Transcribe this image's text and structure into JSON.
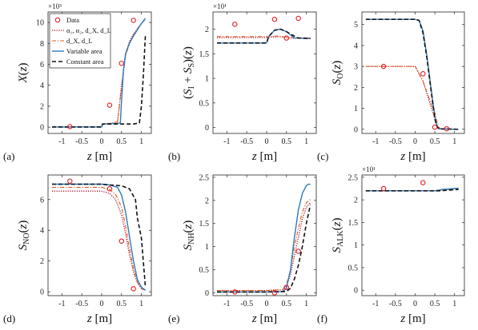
{
  "series_styles": [
    {
      "key": "alpha",
      "color": "#b0102a",
      "dash": "1.2,1.6",
      "width": 1.3
    },
    {
      "key": "dxdl",
      "color": "#e05a1a",
      "dash": "5,2,1.2,2",
      "width": 1.1
    },
    {
      "key": "variable",
      "color": "#2b7bc0",
      "dash": "",
      "width": 1.4
    },
    {
      "key": "constant",
      "color": "#111111",
      "dash": "5,3",
      "width": 1.6
    }
  ],
  "data_color": "#e0202a",
  "legend": {
    "data": "Data",
    "alpha": "α₁, α₂, d_X, d_L",
    "dxdl": "d_X, d_L",
    "variable": "Variable area",
    "constant": "Constant area"
  },
  "chart_data": [
    {
      "type": "line",
      "panel_label": "(a)",
      "ylabel": "X(z)",
      "xlabel": "z [m]",
      "exponent": "×10³",
      "xlim": [
        -1.35,
        1.25
      ],
      "ylim": [
        -0.6,
        11
      ],
      "xticks": [
        -1,
        -0.5,
        0,
        0.5,
        1
      ],
      "xtick_labels": [
        "-1",
        "-0.5",
        "0",
        "0.5",
        "1"
      ],
      "yticks": [
        0,
        2,
        4,
        6,
        8,
        10
      ],
      "ytick_labels": [
        "0",
        "2",
        "4",
        "6",
        "8",
        "10"
      ],
      "data_points": [
        [
          -0.8,
          0.05
        ],
        [
          0.2,
          2.1
        ],
        [
          0.5,
          6.1
        ],
        [
          0.8,
          10.2
        ]
      ],
      "series": [
        {
          "key": "alpha",
          "x": [
            -1.25,
            0,
            0.02,
            0.2,
            0.4,
            0.5,
            0.6,
            0.7,
            0.8,
            0.9,
            1.0,
            1.1
          ],
          "y": [
            0.02,
            0.02,
            0.3,
            0.35,
            0.5,
            4.0,
            7.0,
            8.2,
            8.9,
            9.4,
            9.9,
            10.3
          ]
        },
        {
          "key": "dxdl",
          "x": [
            -1.25,
            0,
            0.02,
            0.2,
            0.4,
            0.5,
            0.6,
            0.7,
            0.8,
            0.9,
            1.0,
            1.1
          ],
          "y": [
            0.02,
            0.02,
            0.3,
            0.35,
            0.5,
            3.8,
            6.8,
            8.0,
            8.8,
            9.4,
            9.9,
            10.3
          ]
        },
        {
          "key": "variable",
          "x": [
            -1.25,
            0,
            0.02,
            0.4,
            0.47,
            0.5,
            0.55,
            0.6,
            0.7,
            0.8,
            0.9,
            1.0,
            1.1
          ],
          "y": [
            0.02,
            0.02,
            0.3,
            0.35,
            0.4,
            2.5,
            5.5,
            7.0,
            8.0,
            8.7,
            9.3,
            9.9,
            10.4
          ]
        },
        {
          "key": "constant",
          "x": [
            -1.25,
            0,
            0.02,
            0.8,
            0.95,
            1.0,
            1.05,
            1.1
          ],
          "y": [
            0.02,
            0.02,
            0.3,
            0.3,
            0.4,
            2.0,
            5.0,
            8.8
          ]
        }
      ]
    },
    {
      "type": "line",
      "panel_label": "(b)",
      "ylabel": "(S_I + S_S)(z)",
      "xlabel": "z [m]",
      "exponent": "×10¹",
      "xlim": [
        -1.35,
        1.25
      ],
      "ylim": [
        -0.12,
        2.35
      ],
      "xticks": [
        -1,
        -0.5,
        0,
        0.5,
        1
      ],
      "xtick_labels": [
        "-1",
        "-0.5",
        "0",
        "0.5",
        "1"
      ],
      "yticks": [
        0,
        0.5,
        1,
        1.5,
        2
      ],
      "ytick_labels": [
        "0",
        "0.5",
        "1",
        "1.5",
        "2"
      ],
      "data_points": [
        [
          -0.8,
          2.1
        ],
        [
          0.2,
          2.2
        ],
        [
          0.5,
          1.82
        ],
        [
          0.8,
          2.22
        ]
      ],
      "series": [
        {
          "key": "alpha",
          "x": [
            -1.25,
            0,
            0.3,
            0.6,
            1.1
          ],
          "y": [
            1.83,
            1.83,
            1.85,
            1.82,
            1.81
          ]
        },
        {
          "key": "dxdl",
          "x": [
            -1.25,
            0,
            0.3,
            0.6,
            1.1
          ],
          "y": [
            1.85,
            1.85,
            1.86,
            1.83,
            1.82
          ]
        },
        {
          "key": "variable",
          "x": [
            -1.25,
            0,
            0.05,
            0.2,
            0.35,
            0.5,
            0.7,
            1.1
          ],
          "y": [
            1.72,
            1.72,
            1.85,
            1.98,
            2.0,
            1.95,
            1.82,
            1.81
          ]
        },
        {
          "key": "constant",
          "x": [
            -1.25,
            0,
            0.05,
            0.2,
            0.35,
            0.5,
            0.65,
            0.8,
            1.1
          ],
          "y": [
            1.72,
            1.72,
            1.85,
            1.98,
            2.0,
            1.95,
            1.88,
            1.82,
            1.81
          ]
        }
      ]
    },
    {
      "type": "line",
      "panel_label": "(c)",
      "ylabel": "S_O(z)",
      "xlabel": "z [m]",
      "exponent": "",
      "xlim": [
        -1.35,
        1.25
      ],
      "ylim": [
        -0.2,
        5.6
      ],
      "xticks": [
        -1,
        -0.5,
        0,
        0.5,
        1
      ],
      "xtick_labels": [
        "-1",
        "-0.5",
        "0",
        "0.5",
        "1"
      ],
      "yticks": [
        0,
        1,
        2,
        3,
        4,
        5
      ],
      "ytick_labels": [
        "0",
        "1",
        "2",
        "3",
        "4",
        "5"
      ],
      "data_points": [
        [
          -0.8,
          3.0
        ],
        [
          0.2,
          2.65
        ],
        [
          0.5,
          0.1
        ],
        [
          0.8,
          0.02
        ]
      ],
      "series": [
        {
          "key": "alpha",
          "x": [
            -1.25,
            0,
            0.2,
            0.35,
            0.5,
            0.55,
            0.6,
            1.1
          ],
          "y": [
            3.0,
            3.0,
            2.3,
            1.4,
            0.5,
            0.15,
            0.02,
            0.0
          ]
        },
        {
          "key": "dxdl",
          "x": [
            -1.25,
            0,
            0.2,
            0.35,
            0.5,
            0.55,
            0.6,
            0.65,
            1.1
          ],
          "y": [
            3.0,
            3.0,
            2.3,
            1.5,
            0.8,
            0.4,
            0.1,
            0.02,
            0.0
          ]
        },
        {
          "key": "variable",
          "x": [
            -1.25,
            0,
            0.1,
            0.2,
            0.3,
            0.4,
            0.5,
            0.55,
            0.6,
            1.1
          ],
          "y": [
            5.25,
            5.25,
            5.2,
            4.7,
            3.5,
            2.0,
            0.6,
            0.2,
            0.02,
            0.0
          ]
        },
        {
          "key": "constant",
          "x": [
            -1.25,
            0,
            0.1,
            0.2,
            0.3,
            0.4,
            0.5,
            0.55,
            0.6,
            1.1
          ],
          "y": [
            5.25,
            5.25,
            5.2,
            4.6,
            3.4,
            1.9,
            0.5,
            0.15,
            0.02,
            0.0
          ]
        }
      ]
    },
    {
      "type": "line",
      "panel_label": "(d)",
      "ylabel": "S_NO(z)",
      "xlabel": "z [m]",
      "exponent": "",
      "xlim": [
        -1.35,
        1.25
      ],
      "ylim": [
        -0.25,
        7.6
      ],
      "xticks": [
        -1,
        -0.5,
        0,
        0.5,
        1
      ],
      "xtick_labels": [
        "-1",
        "-0.5",
        "0",
        "0.5",
        "1"
      ],
      "yticks": [
        0,
        2,
        4,
        6
      ],
      "ytick_labels": [
        "0",
        "2",
        "4",
        "6"
      ],
      "data_points": [
        [
          -0.8,
          7.2
        ],
        [
          0.2,
          6.7
        ],
        [
          0.5,
          3.3
        ],
        [
          0.8,
          0.2
        ]
      ],
      "series": [
        {
          "key": "alpha",
          "x": [
            -1.25,
            0,
            0.2,
            0.35,
            0.5,
            0.6,
            0.7,
            0.8,
            0.9,
            1.0,
            1.1
          ],
          "y": [
            6.55,
            6.55,
            6.4,
            6.0,
            5.0,
            3.8,
            2.4,
            1.3,
            0.6,
            0.2,
            0.1
          ]
        },
        {
          "key": "dxdl",
          "x": [
            -1.25,
            0,
            0.2,
            0.35,
            0.5,
            0.6,
            0.7,
            0.8,
            0.9,
            1.0,
            1.1
          ],
          "y": [
            6.8,
            6.8,
            6.65,
            6.35,
            5.5,
            4.3,
            2.8,
            1.5,
            0.6,
            0.2,
            0.1
          ]
        },
        {
          "key": "variable",
          "x": [
            -1.25,
            0,
            0.2,
            0.4,
            0.5,
            0.6,
            0.7,
            0.8,
            0.9,
            1.0,
            1.1
          ],
          "y": [
            7.0,
            7.0,
            6.95,
            6.8,
            6.3,
            5.2,
            3.6,
            2.0,
            0.8,
            0.3,
            0.1
          ]
        },
        {
          "key": "constant",
          "x": [
            -1.25,
            0,
            0.2,
            0.5,
            0.7,
            0.85,
            0.9,
            1.0,
            1.1
          ],
          "y": [
            7.0,
            7.0,
            6.95,
            6.9,
            6.7,
            6.0,
            4.8,
            3.5,
            0.3
          ]
        }
      ]
    },
    {
      "type": "line",
      "panel_label": "(e)",
      "ylabel": "S_NH(z)",
      "xlabel": "z [m]",
      "exponent": "",
      "xlim": [
        -1.35,
        1.25
      ],
      "ylim": [
        -0.06,
        2.55
      ],
      "xticks": [
        -1,
        -0.5,
        0,
        0.5,
        1
      ],
      "xtick_labels": [
        "-1",
        "-0.5",
        "0",
        "0.5",
        "1"
      ],
      "yticks": [
        0,
        0.5,
        1,
        1.5,
        2,
        2.5
      ],
      "ytick_labels": [
        "0",
        "0.5",
        "1",
        "1.5",
        "2",
        "2.5"
      ],
      "data_points": [
        [
          -0.8,
          0.02
        ],
        [
          0.2,
          0.0
        ],
        [
          0.5,
          0.12
        ],
        [
          0.8,
          0.9
        ]
      ],
      "series": [
        {
          "key": "alpha",
          "x": [
            -1.25,
            0,
            0.4,
            0.5,
            0.6,
            0.7,
            0.8,
            0.9,
            1.0,
            1.1
          ],
          "y": [
            0.05,
            0.05,
            0.07,
            0.15,
            0.4,
            0.8,
            1.2,
            1.6,
            1.85,
            1.95
          ]
        },
        {
          "key": "dxdl",
          "x": [
            -1.25,
            0,
            0.4,
            0.5,
            0.6,
            0.7,
            0.8,
            0.9,
            1.0,
            1.1
          ],
          "y": [
            0.05,
            0.05,
            0.07,
            0.18,
            0.5,
            1.0,
            1.4,
            1.75,
            1.95,
            2.02
          ]
        },
        {
          "key": "variable",
          "x": [
            -1.25,
            0,
            0.4,
            0.5,
            0.6,
            0.7,
            0.8,
            0.9,
            1.0,
            1.05,
            1.1
          ],
          "y": [
            0.02,
            0.02,
            0.03,
            0.1,
            0.5,
            1.2,
            1.8,
            2.15,
            2.32,
            2.35,
            2.35
          ]
        },
        {
          "key": "constant",
          "x": [
            -1.25,
            0,
            0.5,
            0.6,
            0.7,
            0.8,
            0.9,
            1.0,
            1.1
          ],
          "y": [
            0.02,
            0.02,
            0.03,
            0.1,
            0.3,
            0.6,
            1.0,
            1.5,
            1.9
          ]
        }
      ]
    },
    {
      "type": "line",
      "panel_label": "(f)",
      "ylabel": "S_ALK(z)",
      "xlabel": "z [m]",
      "exponent": "×10¹",
      "xlim": [
        -1.35,
        1.25
      ],
      "ylim": [
        -0.12,
        2.55
      ],
      "xticks": [
        -1,
        -0.5,
        0,
        0.5,
        1
      ],
      "xtick_labels": [
        "-1",
        "-0.5",
        "0",
        "0.5",
        "1"
      ],
      "yticks": [
        0,
        0.5,
        1,
        1.5,
        2,
        2.5
      ],
      "ytick_labels": [
        "0",
        "0.5",
        "1",
        "1.5",
        "2",
        "2.5"
      ],
      "data_points": [
        [
          -0.8,
          2.25
        ],
        [
          0.2,
          2.38
        ]
      ],
      "series": [
        {
          "key": "alpha",
          "x": [
            -1.25,
            0.5,
            0.7,
            1.1
          ],
          "y": [
            2.2,
            2.2,
            2.23,
            2.25
          ]
        },
        {
          "key": "dxdl",
          "x": [
            -1.25,
            0.5,
            0.7,
            1.1
          ],
          "y": [
            2.2,
            2.2,
            2.22,
            2.24
          ]
        },
        {
          "key": "variable",
          "x": [
            -1.25,
            0.5,
            0.7,
            1.1
          ],
          "y": [
            2.2,
            2.2,
            2.23,
            2.26
          ]
        },
        {
          "key": "constant",
          "x": [
            -1.25,
            0.6,
            0.8,
            1.1
          ],
          "y": [
            2.2,
            2.2,
            2.21,
            2.23
          ]
        }
      ]
    }
  ]
}
